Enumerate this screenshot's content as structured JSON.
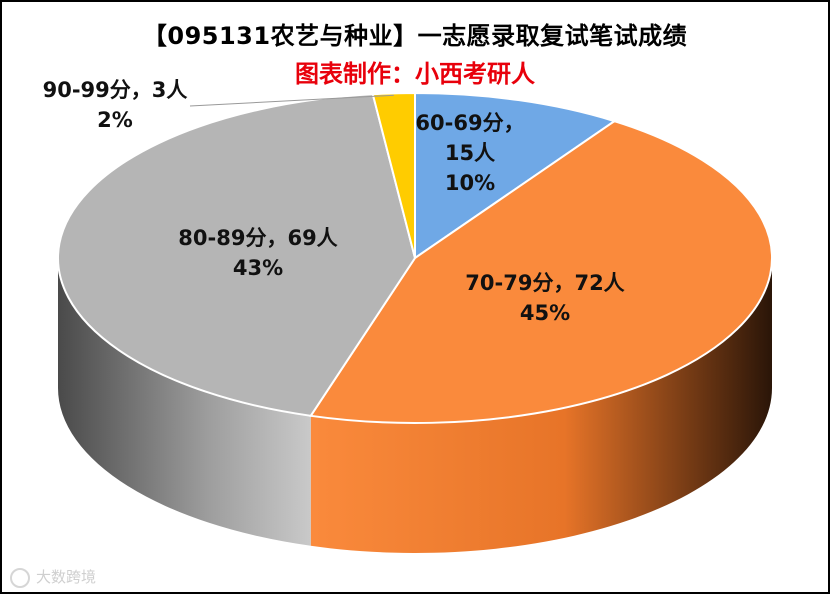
{
  "chart_data": {
    "type": "pie",
    "title": "【095131农艺与种业】一志愿录取复试笔试成绩",
    "subtitle": "图表制作：小西考研人",
    "slices": [
      {
        "label": "60-69分",
        "count": 15,
        "percent": 10,
        "display_line1": "60-69分，",
        "display_line2": "15人",
        "display_line3": "10%",
        "color": "#6fa8e6"
      },
      {
        "label": "70-79分",
        "count": 72,
        "percent": 45,
        "display_line1": "70-79分，72人",
        "display_line2": "45%",
        "color": "#fa8a3c"
      },
      {
        "label": "80-89分",
        "count": 69,
        "percent": 43,
        "display_line1": "80-89分，69人",
        "display_line2": "43%",
        "color": "#b5b5b5"
      },
      {
        "label": "90-99分",
        "count": 3,
        "percent": 2,
        "display_line1": "90-99分，3人",
        "display_line2": "2%",
        "color": "#ffcc00"
      }
    ],
    "style": "3d-pie",
    "legend": "none"
  },
  "colors": {
    "subtitle": "#e8000b",
    "title": "#000000"
  },
  "watermark": {
    "text": "大数跨境"
  }
}
